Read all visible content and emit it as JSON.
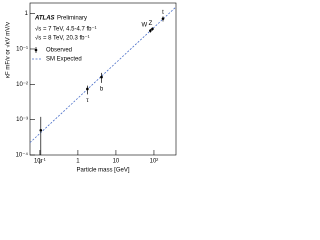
{
  "chart_data": {
    "type": "scatter",
    "title": "ATLAS",
    "subtitle": "Preliminary",
    "annotations": [
      "√s = 7 TeV, 4.5-4.7 fb⁻¹",
      "√s = 8 TeV, 20.3 fb⁻¹"
    ],
    "x_label": "Particle mass [GeV]",
    "y_label": "κF mF/v  or  √κV mV/v",
    "x_log": true,
    "y_log": true,
    "xlim": [
      0.055,
      380
    ],
    "ylim": [
      0.0001,
      2
    ],
    "xticks": [
      {
        "value": 0.1,
        "label": "10⁻¹"
      },
      1,
      10,
      {
        "value": 100,
        "label": "10²"
      }
    ],
    "yticks": [
      1,
      {
        "value": 0.1,
        "label": "10⁻¹"
      },
      {
        "value": 0.01,
        "label": "10⁻²"
      },
      {
        "value": 0.001,
        "label": "10⁻³"
      },
      {
        "value": 0.0001,
        "label": "10⁻⁴"
      }
    ],
    "series": [
      {
        "name": "Observed",
        "color": "#000000",
        "labels": [
          "μ",
          "τ",
          "b",
          "W",
          "Z",
          "t"
        ],
        "x": [
          0.1057,
          1.777,
          4.18,
          80.4,
          91.2,
          173
        ],
        "values": [
          0.0005,
          0.0074,
          0.016,
          0.33,
          0.37,
          0.72
        ],
        "lower": [
          0.0001,
          0.0052,
          0.011,
          0.29,
          0.33,
          0.6
        ],
        "upper": [
          0.0012,
          0.0092,
          0.021,
          0.37,
          0.41,
          0.84
        ]
      }
    ],
    "reference": {
      "name": "SM Expected",
      "color": "#4a6fc9",
      "x": [
        0.055,
        380
      ],
      "values": [
        0.000224,
        1.545
      ]
    }
  }
}
